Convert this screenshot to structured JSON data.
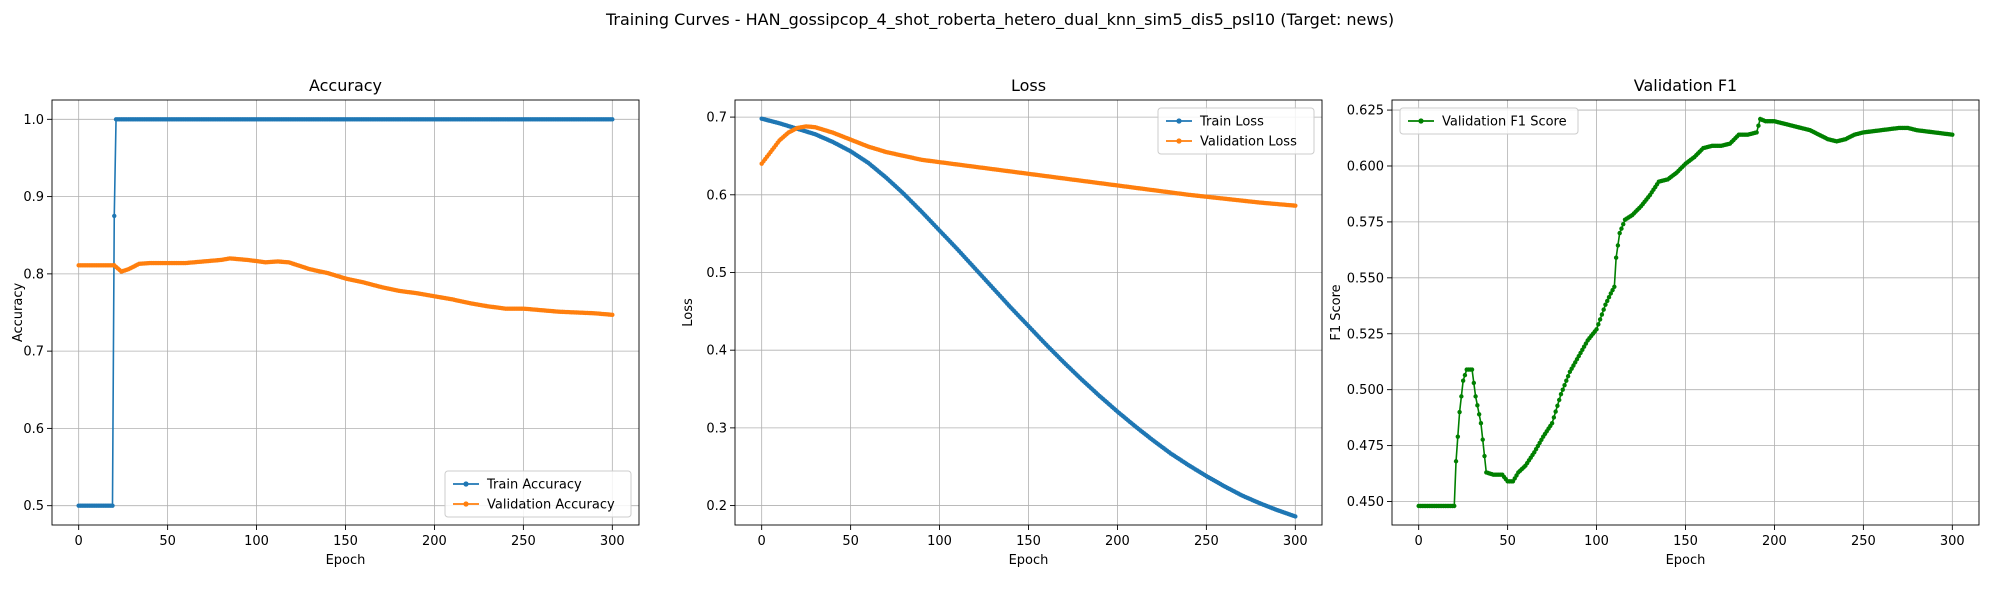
{
  "suptitle": "Training Curves - HAN_gossipcop_4_shot_roberta_hetero_dual_knn_sim5_dis5_psl10 (Target: news)",
  "colors": {
    "train": "#1f77b4",
    "validation": "#ff7f0e",
    "f1": "#008000"
  },
  "chart_data": [
    {
      "type": "line",
      "title": "Accuracy",
      "xlabel": "Epoch",
      "ylabel": "Accuracy",
      "xlim": [
        -15,
        315
      ],
      "ylim": [
        0.475,
        1.025
      ],
      "xticks": [
        0,
        50,
        100,
        150,
        200,
        250,
        300
      ],
      "yticks": [
        0.5,
        0.6,
        0.7,
        0.8,
        0.9,
        1.0
      ],
      "ytick_labels": [
        "0.5",
        "0.6",
        "0.7",
        "0.8",
        "0.9",
        "1.0"
      ],
      "grid": true,
      "legend_position": "lower-right",
      "series": [
        {
          "name": "Train Accuracy",
          "color": "#1f77b4",
          "points": [
            [
              0,
              0.5
            ],
            [
              19,
              0.5
            ],
            [
              20,
              0.875
            ],
            [
              21,
              1.0
            ],
            [
              300,
              1.0
            ]
          ]
        },
        {
          "name": "Validation Accuracy",
          "color": "#ff7f0e",
          "points": [
            [
              0,
              0.811
            ],
            [
              20,
              0.811
            ],
            [
              24,
              0.803
            ],
            [
              28,
              0.806
            ],
            [
              34,
              0.813
            ],
            [
              40,
              0.814
            ],
            [
              60,
              0.814
            ],
            [
              80,
              0.818
            ],
            [
              85,
              0.82
            ],
            [
              95,
              0.818
            ],
            [
              105,
              0.815
            ],
            [
              112,
              0.816
            ],
            [
              118,
              0.815
            ],
            [
              130,
              0.806
            ],
            [
              140,
              0.801
            ],
            [
              150,
              0.794
            ],
            [
              160,
              0.789
            ],
            [
              170,
              0.783
            ],
            [
              180,
              0.778
            ],
            [
              190,
              0.775
            ],
            [
              200,
              0.771
            ],
            [
              210,
              0.767
            ],
            [
              220,
              0.762
            ],
            [
              230,
              0.758
            ],
            [
              240,
              0.755
            ],
            [
              250,
              0.755
            ],
            [
              260,
              0.753
            ],
            [
              270,
              0.751
            ],
            [
              280,
              0.75
            ],
            [
              290,
              0.749
            ],
            [
              300,
              0.747
            ]
          ]
        }
      ]
    },
    {
      "type": "line",
      "title": "Loss",
      "xlabel": "Epoch",
      "ylabel": "Loss",
      "xlim": [
        -15,
        315
      ],
      "ylim": [
        0.175,
        0.722
      ],
      "xticks": [
        0,
        50,
        100,
        150,
        200,
        250,
        300
      ],
      "yticks": [
        0.2,
        0.3,
        0.4,
        0.5,
        0.6,
        0.7
      ],
      "ytick_labels": [
        "0.2",
        "0.3",
        "0.4",
        "0.5",
        "0.6",
        "0.7"
      ],
      "grid": true,
      "legend_position": "upper-right",
      "series": [
        {
          "name": "Train Loss",
          "color": "#1f77b4",
          "points": [
            [
              0,
              0.698
            ],
            [
              10,
              0.692
            ],
            [
              20,
              0.685
            ],
            [
              30,
              0.678
            ],
            [
              40,
              0.668
            ],
            [
              50,
              0.656
            ],
            [
              60,
              0.641
            ],
            [
              70,
              0.622
            ],
            [
              80,
              0.601
            ],
            [
              90,
              0.578
            ],
            [
              100,
              0.554
            ],
            [
              110,
              0.53
            ],
            [
              120,
              0.505
            ],
            [
              130,
              0.48
            ],
            [
              140,
              0.455
            ],
            [
              150,
              0.431
            ],
            [
              160,
              0.407
            ],
            [
              170,
              0.384
            ],
            [
              180,
              0.362
            ],
            [
              190,
              0.341
            ],
            [
              200,
              0.321
            ],
            [
              210,
              0.302
            ],
            [
              220,
              0.284
            ],
            [
              230,
              0.267
            ],
            [
              240,
              0.252
            ],
            [
              250,
              0.238
            ],
            [
              260,
              0.225
            ],
            [
              270,
              0.213
            ],
            [
              280,
              0.203
            ],
            [
              290,
              0.194
            ],
            [
              300,
              0.186
            ]
          ]
        },
        {
          "name": "Validation Loss",
          "color": "#ff7f0e",
          "points": [
            [
              0,
              0.64
            ],
            [
              5,
              0.655
            ],
            [
              10,
              0.67
            ],
            [
              15,
              0.68
            ],
            [
              20,
              0.686
            ],
            [
              25,
              0.688
            ],
            [
              30,
              0.687
            ],
            [
              40,
              0.68
            ],
            [
              50,
              0.671
            ],
            [
              60,
              0.662
            ],
            [
              70,
              0.655
            ],
            [
              80,
              0.65
            ],
            [
              90,
              0.645
            ],
            [
              100,
              0.642
            ],
            [
              120,
              0.636
            ],
            [
              140,
              0.63
            ],
            [
              160,
              0.624
            ],
            [
              180,
              0.618
            ],
            [
              200,
              0.612
            ],
            [
              220,
              0.606
            ],
            [
              240,
              0.6
            ],
            [
              260,
              0.595
            ],
            [
              280,
              0.59
            ],
            [
              300,
              0.586
            ]
          ]
        }
      ]
    },
    {
      "type": "line",
      "title": "Validation F1",
      "xlabel": "Epoch",
      "ylabel": "F1 Score",
      "xlim": [
        -15,
        315
      ],
      "ylim": [
        0.4395,
        0.6295
      ],
      "xticks": [
        0,
        50,
        100,
        150,
        200,
        250,
        300
      ],
      "yticks": [
        0.45,
        0.475,
        0.5,
        0.525,
        0.55,
        0.575,
        0.6,
        0.625
      ],
      "ytick_labels": [
        "0.450",
        "0.475",
        "0.500",
        "0.525",
        "0.550",
        "0.575",
        "0.600",
        "0.625"
      ],
      "grid": true,
      "legend_position": "upper-left",
      "series": [
        {
          "name": "Validation F1 Score",
          "color": "#008000",
          "points": [
            [
              0,
              0.448
            ],
            [
              20,
              0.448
            ],
            [
              21,
              0.468
            ],
            [
              23,
              0.49
            ],
            [
              25,
              0.504
            ],
            [
              27,
              0.509
            ],
            [
              30,
              0.509
            ],
            [
              32,
              0.497
            ],
            [
              35,
              0.485
            ],
            [
              38,
              0.463
            ],
            [
              42,
              0.462
            ],
            [
              47,
              0.462
            ],
            [
              50,
              0.459
            ],
            [
              53,
              0.459
            ],
            [
              56,
              0.463
            ],
            [
              60,
              0.466
            ],
            [
              65,
              0.472
            ],
            [
              70,
              0.479
            ],
            [
              75,
              0.485
            ],
            [
              80,
              0.498
            ],
            [
              85,
              0.508
            ],
            [
              90,
              0.515
            ],
            [
              95,
              0.522
            ],
            [
              100,
              0.527
            ],
            [
              105,
              0.538
            ],
            [
              108,
              0.543
            ],
            [
              110,
              0.546
            ],
            [
              111,
              0.559
            ],
            [
              113,
              0.57
            ],
            [
              116,
              0.576
            ],
            [
              120,
              0.578
            ],
            [
              125,
              0.582
            ],
            [
              130,
              0.587
            ],
            [
              135,
              0.593
            ],
            [
              140,
              0.594
            ],
            [
              145,
              0.597
            ],
            [
              150,
              0.601
            ],
            [
              155,
              0.604
            ],
            [
              160,
              0.608
            ],
            [
              165,
              0.609
            ],
            [
              170,
              0.609
            ],
            [
              175,
              0.61
            ],
            [
              180,
              0.614
            ],
            [
              185,
              0.614
            ],
            [
              190,
              0.615
            ],
            [
              192,
              0.621
            ],
            [
              195,
              0.62
            ],
            [
              200,
              0.62
            ],
            [
              210,
              0.618
            ],
            [
              220,
              0.616
            ],
            [
              230,
              0.612
            ],
            [
              235,
              0.611
            ],
            [
              240,
              0.612
            ],
            [
              245,
              0.614
            ],
            [
              250,
              0.615
            ],
            [
              260,
              0.616
            ],
            [
              270,
              0.617
            ],
            [
              275,
              0.617
            ],
            [
              280,
              0.616
            ],
            [
              290,
              0.615
            ],
            [
              300,
              0.614
            ]
          ]
        }
      ]
    }
  ]
}
